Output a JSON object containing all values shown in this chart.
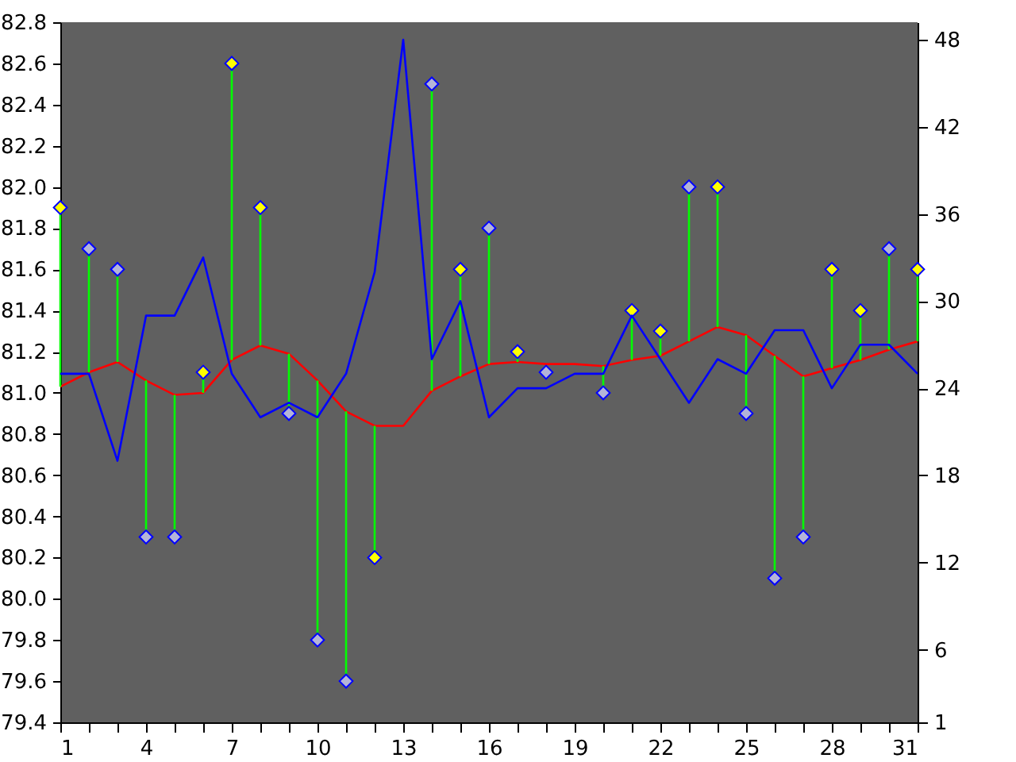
{
  "chart_data": {
    "type": "scatter",
    "x": [
      1,
      2,
      3,
      4,
      5,
      6,
      7,
      8,
      9,
      10,
      11,
      12,
      13,
      14,
      15,
      16,
      17,
      18,
      19,
      20,
      21,
      22,
      23,
      24,
      25,
      26,
      27,
      28,
      29,
      30,
      31
    ],
    "xlim": [
      1,
      31
    ],
    "xticks": [
      1,
      {
        "value": 2,
        "label": null
      },
      {
        "value": 3,
        "label": null
      },
      4,
      {
        "value": 5,
        "label": null
      },
      {
        "value": 6,
        "label": null
      },
      7,
      {
        "value": 8,
        "label": null
      },
      {
        "value": 9,
        "label": null
      },
      10,
      {
        "value": 11,
        "label": null
      },
      {
        "value": 12,
        "label": null
      },
      13,
      {
        "value": 14,
        "label": null
      },
      {
        "value": 15,
        "label": null
      },
      16,
      {
        "value": 17,
        "label": null
      },
      {
        "value": 18,
        "label": null
      },
      19,
      {
        "value": 20,
        "label": null
      },
      {
        "value": 21,
        "label": null
      },
      22,
      {
        "value": 23,
        "label": null
      },
      {
        "value": 24,
        "label": null
      },
      25,
      {
        "value": 26,
        "label": null
      },
      {
        "value": 27,
        "label": null
      },
      28,
      {
        "value": 29,
        "label": null
      },
      {
        "value": 30,
        "label": null
      },
      31
    ],
    "ylim": [
      79.4,
      82.8
    ],
    "yticks": [
      79.4,
      79.6,
      79.8,
      {
        "value": 80,
        "label": "80.0"
      },
      80.2,
      80.4,
      80.6,
      80.8,
      {
        "value": 81,
        "label": "81.0"
      },
      81.2,
      81.4,
      81.6,
      81.8,
      {
        "value": 82,
        "label": "82.0"
      },
      82.2,
      82.4,
      82.6,
      82.8
    ],
    "y2lim": [
      1,
      49.2
    ],
    "y2ticks": [
      1,
      6,
      12,
      18,
      24,
      30,
      36,
      42,
      48
    ],
    "grid": false,
    "series": [
      {
        "type": "scatter",
        "marker": "diamond",
        "color": "#00ff00",
        "values": [
          81.9,
          81.7,
          81.6,
          80.3,
          80.3,
          81.1,
          82.6,
          81.9,
          80.9,
          79.8,
          79.6,
          80.2,
          null,
          82.5,
          81.6,
          81.8,
          81.2,
          81.1,
          null,
          81.0,
          81.4,
          81.3,
          82.0,
          82.0,
          80.9,
          80.1,
          80.3,
          81.6,
          81.4,
          81.7,
          81.6
        ],
        "colors": [
          "#ffff00",
          "#b4b4d8",
          "#b4b4d8",
          "#b4b4d8",
          "#b4b4d8",
          "#ffff00",
          "#ffff00",
          "#ffff00",
          "#b4b4d8",
          "#b4b4d8",
          "#b4b4d8",
          "#ffff00",
          null,
          "#b4b4d8",
          "#ffff00",
          "#b4b4d8",
          "#ffff00",
          "#b4b4d8",
          null,
          "#b4b4d8",
          "#ffff00",
          "#ffff00",
          "#b4b4d8",
          "#ffff00",
          "#b4b4d8",
          "#b4b4d8",
          "#b4b4d8",
          "#ffff00",
          "#ffff00",
          "#b4b4d8",
          "#ffff00"
        ],
        "errors": [
          [
            81.03,
            81.9
          ],
          [
            81.1,
            81.7
          ],
          [
            81.15,
            81.6
          ],
          [
            80.3,
            81.06
          ],
          [
            80.3,
            80.99
          ],
          [
            81.0,
            81.1
          ],
          [
            81.16,
            82.6
          ],
          [
            81.23,
            81.9
          ],
          [
            80.9,
            81.19
          ],
          [
            79.8,
            81.06
          ],
          [
            79.6,
            80.91
          ],
          [
            80.2,
            80.84
          ],
          null,
          [
            81.01,
            82.5
          ],
          [
            81.08,
            81.6
          ],
          [
            81.14,
            81.8
          ],
          [
            81.15,
            81.2
          ],
          null,
          null,
          [
            81.0,
            81.13
          ],
          [
            81.16,
            81.4
          ],
          [
            81.18,
            81.3
          ],
          [
            81.25,
            82.0
          ],
          [
            81.32,
            82.0
          ],
          [
            80.9,
            81.28
          ],
          [
            80.1,
            81.18
          ],
          [
            80.3,
            81.08
          ],
          [
            81.12,
            81.6
          ],
          [
            81.16,
            81.4
          ],
          [
            81.21,
            81.7
          ],
          [
            81.25,
            81.6
          ]
        ]
      },
      {
        "type": "line",
        "marker": "none",
        "color": "#ff0000",
        "values": [
          81.03,
          81.1,
          81.15,
          81.06,
          80.99,
          81.0,
          81.16,
          81.23,
          81.19,
          81.06,
          80.91,
          80.84,
          80.84,
          81.01,
          81.08,
          81.14,
          81.15,
          81.14,
          81.14,
          81.13,
          81.16,
          81.18,
          81.25,
          81.32,
          81.28,
          81.18,
          81.08,
          81.12,
          81.16,
          81.21,
          81.25
        ]
      },
      {
        "type": "line",
        "marker": "none",
        "color": "#0000ff",
        "axis": "y2",
        "values": [
          25,
          25,
          19,
          29,
          29,
          33,
          25,
          22,
          23,
          22,
          25,
          32,
          48,
          26,
          30,
          22,
          24,
          24,
          25,
          25,
          29,
          26,
          23,
          26,
          25,
          28,
          28,
          24,
          27,
          27,
          25
        ]
      }
    ]
  }
}
